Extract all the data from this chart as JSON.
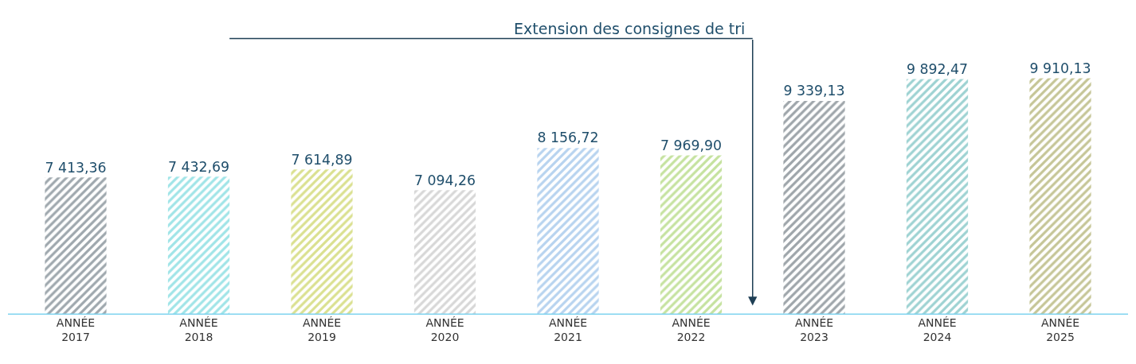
{
  "chart_data": {
    "type": "bar",
    "categories": [
      "ANNÉE 2017",
      "ANNÉE 2018",
      "ANNÉE 2019",
      "ANNÉE 2020",
      "ANNÉE 2021",
      "ANNÉE 2022",
      "ANNÉE 2023",
      "ANNÉE 2024",
      "ANNÉE 2025"
    ],
    "values": [
      7413.36,
      7432.69,
      7614.89,
      7094.26,
      8156.72,
      7969.9,
      9339.13,
      9892.47,
      9910.13
    ],
    "value_labels": [
      "7 413,36",
      "7 432,69",
      "7 614,89",
      "7 094,26",
      "8 156,72",
      "7 969,90",
      "9 339,13",
      "9 892,47",
      "9 910,13"
    ],
    "colors": [
      "#3d4f5c",
      "#3fc9cf",
      "#b5c21f",
      "#b0b0b0",
      "#6fa8e0",
      "#8cc63f",
      "#3d4b55",
      "#3ba6a6",
      "#8c8c2e"
    ],
    "tick_labels": "x",
    "annotations": [
      "Extension des consignes de tri"
    ]
  }
}
